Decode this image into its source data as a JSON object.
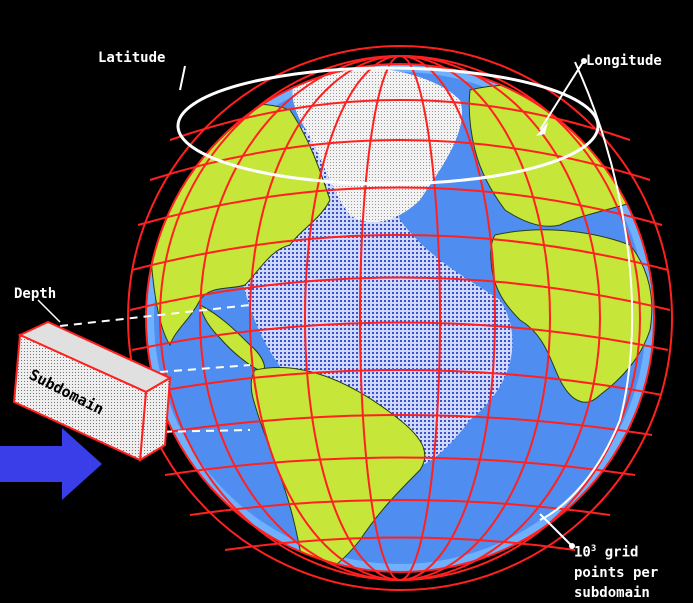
{
  "labels": {
    "latitude": "Latitude",
    "longitude": "Longitude",
    "depth": "Depth",
    "subdomain": "Subdomain",
    "grid_base": "10",
    "grid_exp": "3",
    "grid_line1": " grid",
    "grid_line2": "points per",
    "grid_line3": "subdomain"
  },
  "colors": {
    "background": "#000000",
    "grid": "#ff2020",
    "ocean_deep": "#3b6fe0",
    "ocean_shallow": "#8ec7ff",
    "land": "#c6e63a",
    "ice": "#e8e8e8",
    "arrow": "#3a3ee8",
    "annotation": "#ffffff"
  },
  "icons": {
    "arrow": "right-arrow-icon",
    "box": "subdomain-box-icon"
  }
}
